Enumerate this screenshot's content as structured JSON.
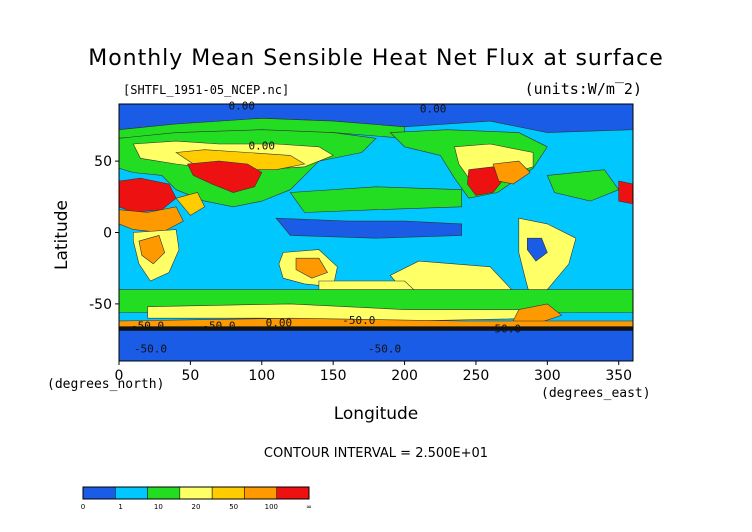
{
  "chart_data": {
    "type": "heatmap",
    "title": "Monthly Mean Sensible Heat Net Flux at surface",
    "subtitle_left": "[SHTFL_1951-05_NCEP.nc]",
    "subtitle_right": "(units:W/m^2)",
    "xlabel": "Longitude",
    "ylabel": "Latitude",
    "x_unit_label": "(degrees_east)",
    "y_unit_label": "(degrees_north)",
    "xlim": [
      0,
      360
    ],
    "ylim": [
      -90,
      90
    ],
    "x_ticks": [
      0,
      50,
      100,
      150,
      200,
      250,
      300,
      350
    ],
    "y_ticks": [
      50,
      0,
      -50
    ],
    "contour_interval": "CONTOUR INTERVAL = 2.500E+01",
    "colorbar": {
      "labels": [
        "0",
        "1",
        "10",
        "20",
        "50",
        "100",
        "∞"
      ],
      "colors": [
        "#1a5ce6",
        "#00c8ff",
        "#22dd22",
        "#ffff66",
        "#ffcc00",
        "#ff9900",
        "#ee1111"
      ]
    },
    "contour_labels": [
      {
        "text": "0.00",
        "lon": 86,
        "lat": 86
      },
      {
        "text": "0.00",
        "lon": 220,
        "lat": 84
      },
      {
        "text": "0.00",
        "lon": 100,
        "lat": 58
      },
      {
        "text": "-50.0",
        "lon": 20,
        "lat": -68
      },
      {
        "text": "-50.0",
        "lon": 70,
        "lat": -68
      },
      {
        "text": "0.00",
        "lon": 112,
        "lat": -66
      },
      {
        "text": "-50.0",
        "lon": 168,
        "lat": -64
      },
      {
        "text": "-50.0",
        "lon": 270,
        "lat": -70
      },
      {
        "text": "-50.0",
        "lon": 22,
        "lat": -84
      },
      {
        "text": "-50.0",
        "lon": 186,
        "lat": -84
      }
    ]
  }
}
